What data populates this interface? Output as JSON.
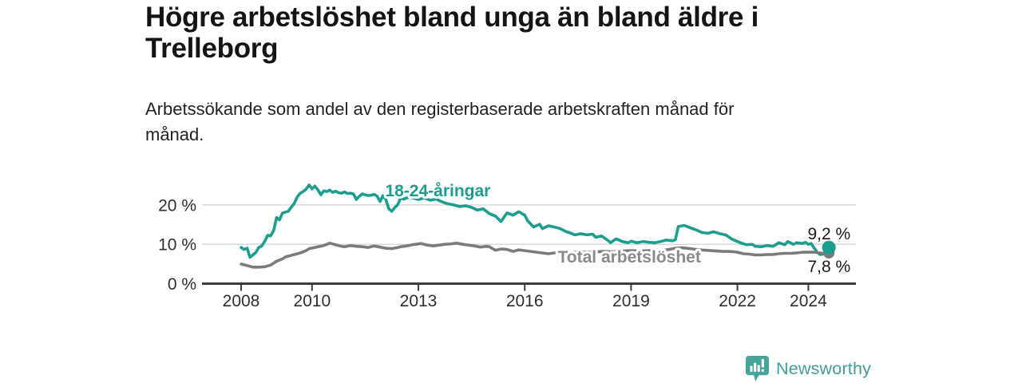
{
  "header": {
    "title": "Högre arbetslöshet bland unga än bland äldre i Trelleborg",
    "subtitle": "Arbetssökande som andel av den registerbaserade arbetskraften månad för månad."
  },
  "branding": {
    "logo_text": "Newsworthy",
    "logo_icon": "newsworthy-chart-bubble-icon",
    "logo_color": "#3da096",
    "logo_icon_fill": "#44a69b"
  },
  "colors": {
    "title_text": "#141414",
    "subtitle_text": "#222222",
    "young_line": "#1b9e8d",
    "total_line": "#7b7b7b",
    "total_label_text": "#8a8a8a",
    "grid": "#d9d9d9",
    "axis": "#3d3d3d",
    "tick_text": "#2e2e2e",
    "end_label_text": "#1a1a1a",
    "background": "#ffffff"
  },
  "chart_data": {
    "type": "line",
    "unit": "%",
    "xlim": [
      2007.9,
      2025.3
    ],
    "ylim": [
      0,
      26
    ],
    "grid": "horizontal-only",
    "legend_position": "inline-labels",
    "x_axis": {
      "ticks": [
        {
          "value": 2008,
          "label": "2008"
        },
        {
          "value": 2010,
          "label": "2010"
        },
        {
          "value": 2013,
          "label": "2013"
        },
        {
          "value": 2016,
          "label": "2016"
        },
        {
          "value": 2019,
          "label": "2019"
        },
        {
          "value": 2022,
          "label": "2022"
        },
        {
          "value": 2024,
          "label": "2024"
        }
      ]
    },
    "y_axis": {
      "ticks": [
        {
          "value": 0,
          "label": "0 %"
        },
        {
          "value": 10,
          "label": "10 %"
        },
        {
          "value": 20,
          "label": "20 %"
        }
      ]
    },
    "series": [
      {
        "id": "young",
        "name": "18-24-åringar",
        "color": "#1b9e8d",
        "dot_r": 8.5,
        "label": {
          "text": "18-24-åringar",
          "x": 2013.55,
          "y": 23.6
        },
        "end_label": {
          "text": "9,2 %",
          "position": "above"
        },
        "last_value": 9.2,
        "points": [
          [
            2008,
            9.2
          ],
          [
            2008.08,
            8.7
          ],
          [
            2008.17,
            9
          ],
          [
            2008.25,
            6.7
          ],
          [
            2008.33,
            7.3
          ],
          [
            2008.42,
            8
          ],
          [
            2008.5,
            9.2
          ],
          [
            2008.58,
            9.6
          ],
          [
            2008.67,
            10.8
          ],
          [
            2008.75,
            12.3
          ],
          [
            2008.83,
            12.1
          ],
          [
            2008.92,
            13.5
          ],
          [
            2009,
            16.8
          ],
          [
            2009.08,
            16.2
          ],
          [
            2009.17,
            18
          ],
          [
            2009.25,
            18.2
          ],
          [
            2009.33,
            18.4
          ],
          [
            2009.42,
            19.5
          ],
          [
            2009.5,
            20.4
          ],
          [
            2009.58,
            22
          ],
          [
            2009.67,
            23
          ],
          [
            2009.75,
            23.4
          ],
          [
            2009.83,
            24
          ],
          [
            2009.92,
            25.1
          ],
          [
            2010,
            24.1
          ],
          [
            2010.08,
            24.8
          ],
          [
            2010.17,
            23.8
          ],
          [
            2010.25,
            22.6
          ],
          [
            2010.33,
            23.6
          ],
          [
            2010.42,
            23.4
          ],
          [
            2010.5,
            23.8
          ],
          [
            2010.58,
            23.2
          ],
          [
            2010.67,
            23.5
          ],
          [
            2010.75,
            23.1
          ],
          [
            2010.83,
            23
          ],
          [
            2010.92,
            23.3
          ],
          [
            2011,
            22.9
          ],
          [
            2011.08,
            23
          ],
          [
            2011.17,
            22.8
          ],
          [
            2011.25,
            21.4
          ],
          [
            2011.33,
            22.2
          ],
          [
            2011.42,
            22.8
          ],
          [
            2011.5,
            22.6
          ],
          [
            2011.58,
            22.4
          ],
          [
            2011.67,
            22.5
          ],
          [
            2011.75,
            22.7
          ],
          [
            2011.83,
            22.3
          ],
          [
            2011.92,
            20.9
          ],
          [
            2012,
            22.4
          ],
          [
            2012.08,
            21.4
          ],
          [
            2012.17,
            19
          ],
          [
            2012.25,
            18.4
          ],
          [
            2012.33,
            19.3
          ],
          [
            2012.42,
            20.1
          ],
          [
            2012.5,
            21.8
          ],
          [
            2012.58,
            21.5
          ],
          [
            2012.75,
            22
          ],
          [
            2012.92,
            21.6
          ],
          [
            2013,
            21.4
          ],
          [
            2013.17,
            21.8
          ],
          [
            2013.33,
            21.2
          ],
          [
            2013.5,
            21.5
          ],
          [
            2013.67,
            20.8
          ],
          [
            2013.83,
            20.3
          ],
          [
            2014,
            20
          ],
          [
            2014.17,
            19.6
          ],
          [
            2014.33,
            19.8
          ],
          [
            2014.5,
            19.4
          ],
          [
            2014.67,
            18.7
          ],
          [
            2014.83,
            19
          ],
          [
            2015,
            17.8
          ],
          [
            2015.17,
            17.2
          ],
          [
            2015.33,
            15.8
          ],
          [
            2015.5,
            18
          ],
          [
            2015.67,
            17.4
          ],
          [
            2015.83,
            18.3
          ],
          [
            2016,
            17.4
          ],
          [
            2016.08,
            16
          ],
          [
            2016.25,
            14.4
          ],
          [
            2016.42,
            15.1
          ],
          [
            2016.5,
            14
          ],
          [
            2016.67,
            14.7
          ],
          [
            2016.83,
            14.4
          ],
          [
            2017,
            14
          ],
          [
            2017.17,
            13.2
          ],
          [
            2017.25,
            13
          ],
          [
            2017.42,
            12.4
          ],
          [
            2017.58,
            12.7
          ],
          [
            2017.75,
            12.4
          ],
          [
            2017.92,
            12.6
          ],
          [
            2018,
            11.8
          ],
          [
            2018.17,
            12.1
          ],
          [
            2018.33,
            11.1
          ],
          [
            2018.42,
            10.4
          ],
          [
            2018.58,
            11.4
          ],
          [
            2018.75,
            10.7
          ],
          [
            2018.92,
            10.4
          ],
          [
            2019,
            10.8
          ],
          [
            2019.17,
            10.4
          ],
          [
            2019.33,
            10.7
          ],
          [
            2019.5,
            10.5
          ],
          [
            2019.67,
            10.4
          ],
          [
            2019.83,
            10.7
          ],
          [
            2020,
            11.1
          ],
          [
            2020.17,
            10.9
          ],
          [
            2020.25,
            11.2
          ],
          [
            2020.33,
            14.5
          ],
          [
            2020.5,
            14.8
          ],
          [
            2020.67,
            14.2
          ],
          [
            2020.83,
            13.7
          ],
          [
            2021,
            13
          ],
          [
            2021.17,
            12.8
          ],
          [
            2021.33,
            13.2
          ],
          [
            2021.5,
            12.7
          ],
          [
            2021.67,
            12.4
          ],
          [
            2021.83,
            11.4
          ],
          [
            2022,
            10.7
          ],
          [
            2022.08,
            10.4
          ],
          [
            2022.25,
            9.9
          ],
          [
            2022.42,
            10
          ],
          [
            2022.5,
            9.5
          ],
          [
            2022.67,
            9.4
          ],
          [
            2022.83,
            9.7
          ],
          [
            2023,
            9.5
          ],
          [
            2023.08,
            9.9
          ],
          [
            2023.17,
            10.4
          ],
          [
            2023.33,
            9.9
          ],
          [
            2023.42,
            10.7
          ],
          [
            2023.58,
            10
          ],
          [
            2023.67,
            10.4
          ],
          [
            2023.83,
            10.2
          ],
          [
            2023.92,
            10.5
          ],
          [
            2024,
            10
          ],
          [
            2024.08,
            10.2
          ],
          [
            2024.17,
            9
          ],
          [
            2024.25,
            8
          ],
          [
            2024.33,
            7.4
          ],
          [
            2024.42,
            7.5
          ],
          [
            2024.5,
            8.3
          ],
          [
            2024.58,
            9.2
          ]
        ]
      },
      {
        "id": "total",
        "name": "Total arbetslöshet",
        "color": "#7b7b7b",
        "label_color": "#8a8a8a",
        "dot_r": 7,
        "label": {
          "text": "Total arbetslöshet",
          "x": 2018.95,
          "y": 6.8
        },
        "end_label": {
          "text": "7,8 %",
          "position": "below"
        },
        "last_value": 7.8,
        "points": [
          [
            2008,
            5
          ],
          [
            2008.17,
            4.6
          ],
          [
            2008.33,
            4.2
          ],
          [
            2008.5,
            4.2
          ],
          [
            2008.67,
            4.3
          ],
          [
            2008.83,
            4.7
          ],
          [
            2009,
            5.7
          ],
          [
            2009.17,
            6.3
          ],
          [
            2009.25,
            6.8
          ],
          [
            2009.42,
            7.2
          ],
          [
            2009.5,
            7.4
          ],
          [
            2009.67,
            7.8
          ],
          [
            2009.83,
            8.4
          ],
          [
            2009.92,
            8.9
          ],
          [
            2010.08,
            9.2
          ],
          [
            2010.17,
            9.4
          ],
          [
            2010.33,
            9.7
          ],
          [
            2010.5,
            10.3
          ],
          [
            2010.67,
            9.9
          ],
          [
            2010.83,
            9.5
          ],
          [
            2010.92,
            9.4
          ],
          [
            2011.08,
            9.7
          ],
          [
            2011.25,
            9.5
          ],
          [
            2011.42,
            9.4
          ],
          [
            2011.58,
            9.2
          ],
          [
            2011.75,
            9.6
          ],
          [
            2011.92,
            9.3
          ],
          [
            2012.08,
            9
          ],
          [
            2012.25,
            8.9
          ],
          [
            2012.42,
            9.2
          ],
          [
            2012.5,
            9.4
          ],
          [
            2012.67,
            9.6
          ],
          [
            2012.83,
            9.9
          ],
          [
            2013,
            10.1
          ],
          [
            2013.08,
            10.2
          ],
          [
            2013.25,
            9.8
          ],
          [
            2013.42,
            9.6
          ],
          [
            2013.58,
            9.8
          ],
          [
            2013.75,
            10
          ],
          [
            2013.92,
            10.1
          ],
          [
            2014.08,
            10.3
          ],
          [
            2014.25,
            10
          ],
          [
            2014.42,
            9.8
          ],
          [
            2014.58,
            9.6
          ],
          [
            2014.75,
            9.3
          ],
          [
            2014.92,
            9.5
          ],
          [
            2015,
            9.4
          ],
          [
            2015.17,
            8.5
          ],
          [
            2015.33,
            8.8
          ],
          [
            2015.5,
            8.7
          ],
          [
            2015.67,
            8.2
          ],
          [
            2015.83,
            8.6
          ],
          [
            2016,
            8.4
          ],
          [
            2016.17,
            8.2
          ],
          [
            2016.33,
            8
          ],
          [
            2016.5,
            7.8
          ],
          [
            2016.67,
            7.6
          ],
          [
            2016.83,
            7.8
          ],
          [
            2017,
            7.9
          ],
          [
            2017.25,
            7.8
          ],
          [
            2017.5,
            8
          ],
          [
            2017.75,
            8
          ],
          [
            2018,
            8.1
          ],
          [
            2018.25,
            8.2
          ],
          [
            2018.5,
            8.1
          ],
          [
            2018.75,
            8.3
          ],
          [
            2019,
            8.4
          ],
          [
            2019.25,
            8.3
          ],
          [
            2019.5,
            8.4
          ],
          [
            2019.75,
            8.5
          ],
          [
            2020,
            8.6
          ],
          [
            2020.25,
            9
          ],
          [
            2020.42,
            9.1
          ],
          [
            2020.58,
            9
          ],
          [
            2020.75,
            8.8
          ],
          [
            2020.92,
            8.6
          ],
          [
            2021.08,
            8.5
          ],
          [
            2021.25,
            8.4
          ],
          [
            2021.42,
            8.3
          ],
          [
            2021.58,
            8.2
          ],
          [
            2021.75,
            8.2
          ],
          [
            2021.92,
            8.1
          ],
          [
            2022,
            8
          ],
          [
            2022.17,
            7.6
          ],
          [
            2022.33,
            7.5
          ],
          [
            2022.5,
            7.3
          ],
          [
            2022.67,
            7.3
          ],
          [
            2022.83,
            7.4
          ],
          [
            2023,
            7.4
          ],
          [
            2023.17,
            7.6
          ],
          [
            2023.33,
            7.7
          ],
          [
            2023.5,
            7.7
          ],
          [
            2023.67,
            7.8
          ],
          [
            2023.83,
            8
          ],
          [
            2024,
            8
          ],
          [
            2024.17,
            8
          ],
          [
            2024.33,
            7.8
          ],
          [
            2024.42,
            7.7
          ],
          [
            2024.58,
            7.8
          ]
        ]
      }
    ]
  }
}
